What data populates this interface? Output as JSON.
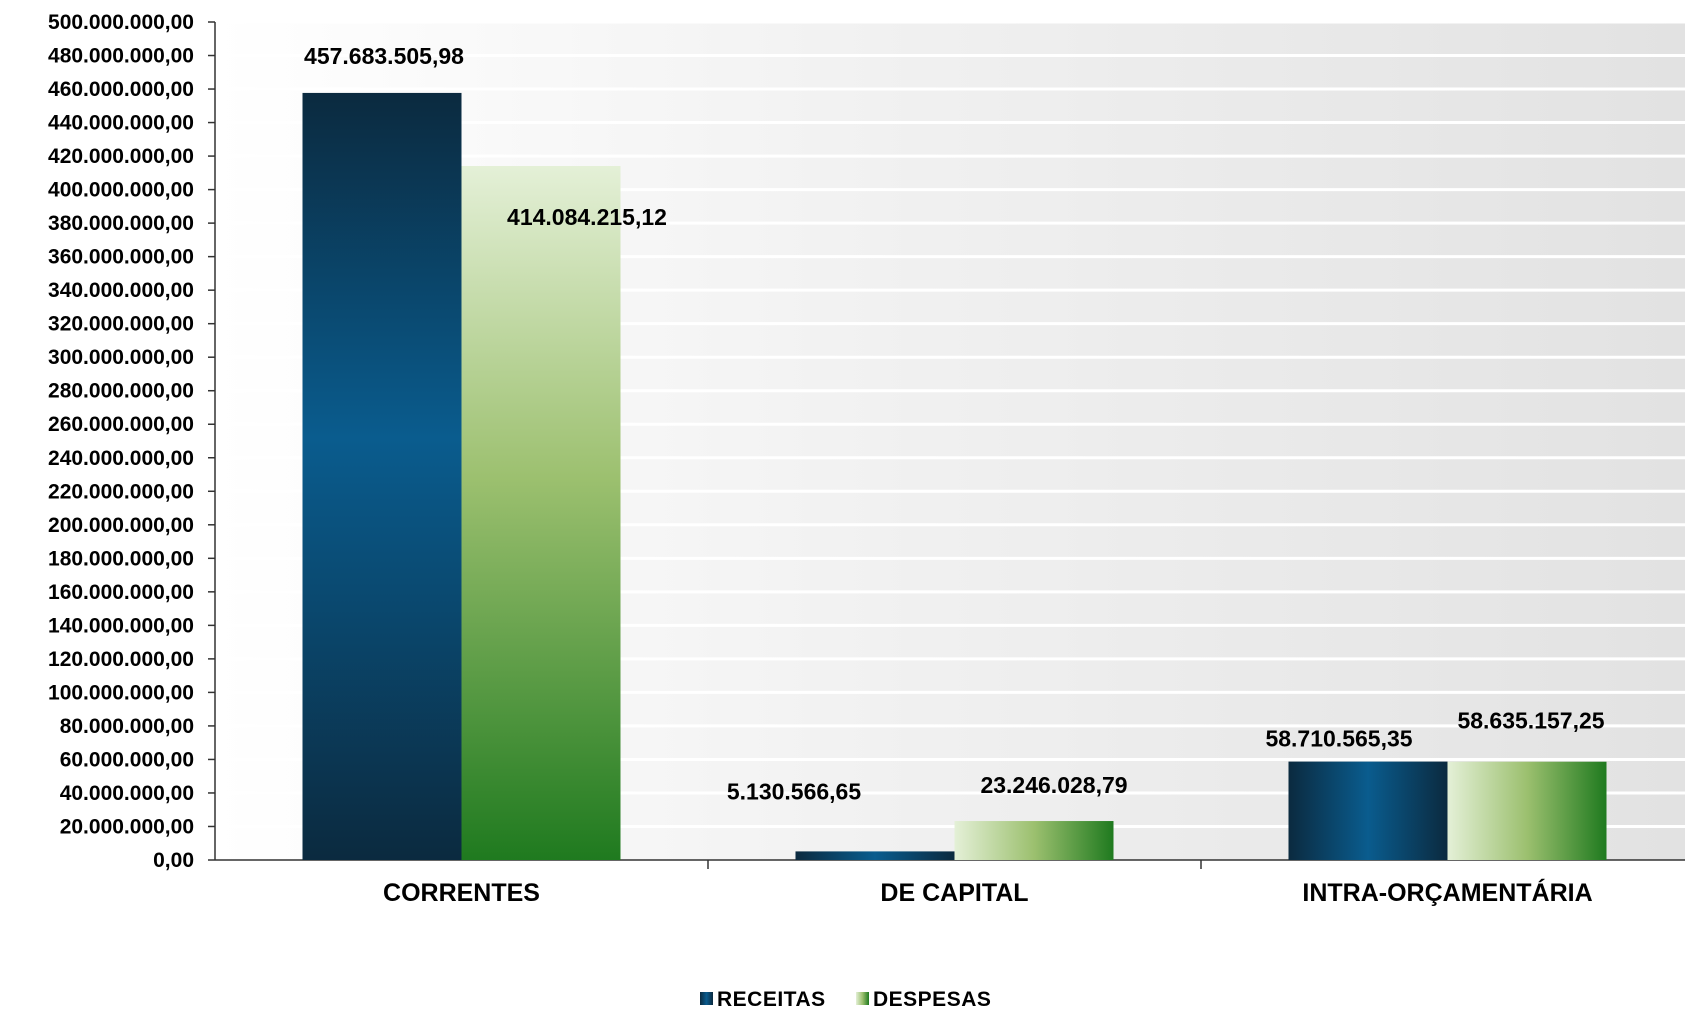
{
  "chart_data": {
    "type": "bar",
    "categories": [
      "CORRENTES",
      "DE CAPITAL",
      "INTRA-ORÇAMENTÁRIA"
    ],
    "series": [
      {
        "name": "RECEITAS",
        "values": [
          457683505.98,
          5130566.65,
          58710565.35
        ],
        "labels": [
          "457.683.505,98",
          "5.130.566,65",
          "58.710.565,35"
        ]
      },
      {
        "name": "DESPESAS",
        "values": [
          414084215.12,
          23246028.79,
          58635157.25
        ],
        "labels": [
          "414.084.215,12",
          "23.246.028,79",
          "58.635.157,25"
        ]
      }
    ],
    "ylim": [
      0,
      500000000
    ],
    "ytick_step": 20000000,
    "yticks": [
      "0,00",
      "20.000.000,00",
      "40.000.000,00",
      "60.000.000,00",
      "80.000.000,00",
      "100.000.000,00",
      "120.000.000,00",
      "140.000.000,00",
      "160.000.000,00",
      "180.000.000,00",
      "200.000.000,00",
      "220.000.000,00",
      "240.000.000,00",
      "260.000.000,00",
      "280.000.000,00",
      "300.000.000,00",
      "320.000.000,00",
      "340.000.000,00",
      "360.000.000,00",
      "380.000.000,00",
      "400.000.000,00",
      "420.000.000,00",
      "440.000.000,00",
      "460.000.000,00",
      "480.000.000,00",
      "500.000.000,00"
    ],
    "grid": true,
    "legend": "bottom",
    "colors": {
      "receitas_dark": "#0b2a3f",
      "receitas_mid": "#0a5c8e",
      "despesas_light": "#e4f0d7",
      "despesas_mid": "#9cc06f",
      "despesas_dark": "#1f7a1f",
      "gridline": "#ffffff",
      "plot_bg": "#e4e4e4"
    }
  }
}
